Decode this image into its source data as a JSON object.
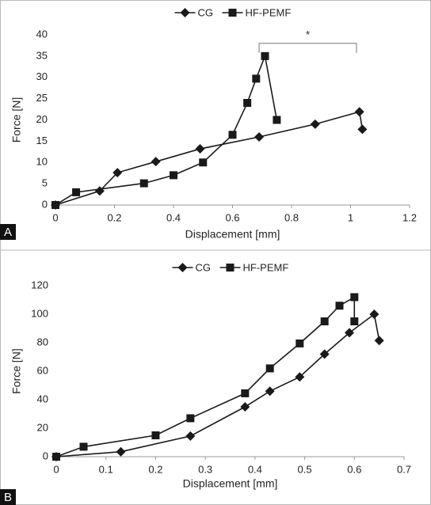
{
  "chart_data": [
    {
      "type": "line",
      "panel": "A",
      "x_label": "Displacement [mm]",
      "y_label": "Force [N]",
      "xlim": [
        0,
        1.2
      ],
      "xticks": [
        0,
        0.2,
        0.4,
        0.6,
        0.8,
        1,
        1.2
      ],
      "ylim": [
        0,
        40
      ],
      "yticks": [
        0,
        5,
        10,
        15,
        20,
        25,
        30,
        35,
        40
      ],
      "grid": false,
      "legend": "top",
      "series": [
        {
          "name": "CG",
          "color": "#1a1a1a",
          "marker": "diamond",
          "x": [
            0,
            0.15,
            0.21,
            0.34,
            0.49,
            0.69,
            0.88,
            1.03,
            1.04
          ],
          "values": [
            0,
            3.3,
            7.6,
            10.2,
            13.2,
            16,
            19,
            21.9,
            17.8
          ]
        },
        {
          "name": "HF-PEMF",
          "color": "#1a1a1a",
          "marker": "square",
          "x": [
            0,
            0.07,
            0.3,
            0.4,
            0.5,
            0.6,
            0.65,
            0.68,
            0.71,
            0.75
          ],
          "values": [
            0,
            3,
            5.1,
            7,
            10,
            16.5,
            24,
            29.7,
            35,
            20
          ]
        }
      ],
      "annotations": [
        {
          "text": "*",
          "x": [
            0.69,
            1.02
          ],
          "y": 38
        }
      ]
    },
    {
      "type": "line",
      "panel": "B",
      "x_label": "Displacement [mm]",
      "y_label": "Force [N]",
      "xlim": [
        0,
        0.7
      ],
      "xticks": [
        0,
        0.1,
        0.2,
        0.3,
        0.4,
        0.5,
        0.6,
        0.7
      ],
      "ylim": [
        0,
        120
      ],
      "yticks": [
        0,
        20,
        40,
        60,
        80,
        100,
        120
      ],
      "grid": false,
      "legend": "top",
      "series": [
        {
          "name": "CG",
          "color": "#1a1a1a",
          "marker": "diamond",
          "x": [
            0,
            0.13,
            0.27,
            0.38,
            0.43,
            0.49,
            0.54,
            0.59,
            0.64,
            0.65
          ],
          "values": [
            0,
            3.5,
            14.5,
            35,
            46,
            56,
            72,
            87,
            100,
            81.5
          ]
        },
        {
          "name": "HF-PEMF",
          "color": "#1a1a1a",
          "marker": "square",
          "x": [
            0,
            0.055,
            0.2,
            0.27,
            0.38,
            0.43,
            0.49,
            0.54,
            0.57,
            0.6,
            0.6
          ],
          "values": [
            0,
            7,
            15,
            27,
            44.5,
            62,
            79.5,
            95,
            106,
            112,
            95
          ]
        }
      ]
    }
  ]
}
